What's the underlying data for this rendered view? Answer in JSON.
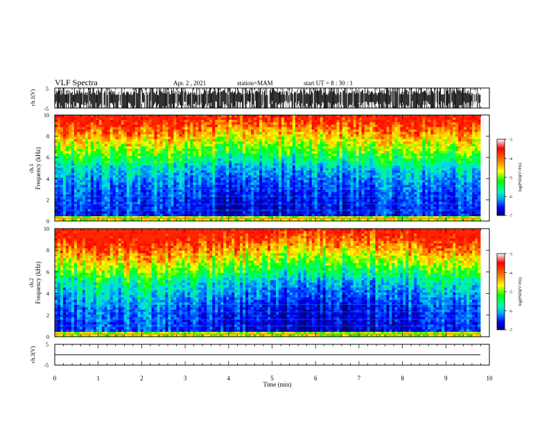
{
  "header": {
    "title": "VLF Spectra",
    "date": "Apr. 2  , 2021",
    "station": "station=MAM",
    "start": "start  UT =   8  : 30 : 1"
  },
  "chart_data": [
    {
      "type": "line",
      "panel": "ch1-waveform",
      "ylabel": "ch.1(V)",
      "ylim": [
        -5,
        5
      ],
      "yticks": [
        "5",
        "-5"
      ],
      "xlim": [
        0,
        10
      ],
      "waveform": "impulsive vertical spikes (sferics) across the record"
    },
    {
      "type": "heatmap",
      "panel": "ch1-spectrogram",
      "ylabel": "ch.1\nFrequency (kHz)",
      "ylim": [
        0,
        10
      ],
      "yticks": [
        "0",
        "2",
        "4",
        "6",
        "8",
        "10"
      ],
      "xlim": [
        0,
        10
      ],
      "colorbar": {
        "label": "log(PSD)(V²/Hz)",
        "range": [
          -7,
          -3
        ],
        "ticks": [
          "-3",
          "-4",
          "-5",
          "-6",
          "-7"
        ]
      },
      "colors": [
        "#000080",
        "#0000ff",
        "#00aaff",
        "#00ffaa",
        "#00ff00",
        "#ffff00",
        "#ff8800",
        "#ff0000",
        "#ffffff"
      ]
    },
    {
      "type": "heatmap",
      "panel": "ch2-spectrogram",
      "ylabel": "ch.2\nFrequency (kHz)",
      "ylim": [
        0,
        10
      ],
      "yticks": [
        "0",
        "2",
        "4",
        "6",
        "8",
        "10"
      ],
      "xlim": [
        0,
        10
      ],
      "colorbar": {
        "label": "log(PSD)(V²/Hz)",
        "range": [
          -7,
          -3
        ],
        "ticks": [
          "-3",
          "-4",
          "-5",
          "-6",
          "-7"
        ]
      }
    },
    {
      "type": "line",
      "panel": "ch3-waveform",
      "ylabel": "ch.3(V)",
      "ylim": [
        -5,
        5
      ],
      "yticks": [
        "5",
        "-5"
      ],
      "xlim": [
        0,
        10
      ],
      "waveform": "flat line at ~-2 V"
    }
  ],
  "xaxis": {
    "label": "Time  (min)",
    "ticks": [
      "0",
      "1",
      "2",
      "3",
      "4",
      "5",
      "6",
      "7",
      "8",
      "9",
      "10"
    ]
  }
}
